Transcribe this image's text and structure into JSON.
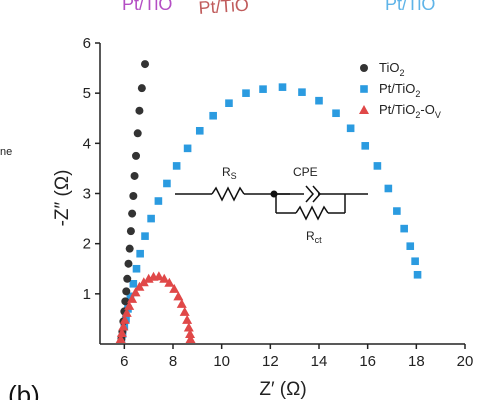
{
  "chart_data": {
    "type": "scatter",
    "xlabel": "Z′ (Ω)",
    "ylabel": "-Z″ (Ω)",
    "xlim": [
      5,
      20
    ],
    "ylim": [
      0,
      6
    ],
    "xticks": [
      6,
      8,
      10,
      12,
      14,
      16,
      18,
      20
    ],
    "yticks": [
      1,
      2,
      3,
      4,
      5,
      6
    ],
    "legend_position": "top-right",
    "series": [
      {
        "name": "TiO2",
        "marker": "circle",
        "color": "#333333",
        "x": [
          5.88,
          5.92,
          5.96,
          6.0,
          6.04,
          6.08,
          6.12,
          6.17,
          6.22,
          6.27,
          6.32,
          6.37,
          6.42,
          6.48,
          6.55,
          6.62,
          6.72,
          6.85
        ],
        "y": [
          0.1,
          0.25,
          0.45,
          0.65,
          0.85,
          1.05,
          1.3,
          1.6,
          1.9,
          2.25,
          2.6,
          2.95,
          3.35,
          3.75,
          4.2,
          4.65,
          5.1,
          5.58
        ]
      },
      {
        "name": "Pt/TiO2",
        "marker": "square",
        "color": "#2b9be0",
        "x": [
          5.88,
          5.93,
          6.0,
          6.07,
          6.15,
          6.25,
          6.37,
          6.5,
          6.65,
          6.85,
          7.1,
          7.4,
          7.75,
          8.15,
          8.6,
          9.1,
          9.65,
          10.3,
          11.0,
          11.7,
          12.5,
          13.3,
          14.0,
          14.7,
          15.3,
          15.9,
          16.4,
          16.85,
          17.2,
          17.5,
          17.75,
          17.95,
          18.05
        ],
        "y": [
          0.1,
          0.2,
          0.35,
          0.5,
          0.7,
          0.95,
          1.2,
          1.5,
          1.8,
          2.15,
          2.5,
          2.85,
          3.2,
          3.55,
          3.9,
          4.25,
          4.55,
          4.8,
          5.0,
          5.08,
          5.12,
          5.02,
          4.85,
          4.6,
          4.3,
          3.95,
          3.55,
          3.1,
          2.65,
          2.3,
          1.95,
          1.65,
          1.38
        ]
      },
      {
        "name": "Pt/TiO2-OV",
        "marker": "triangle",
        "color": "#e04848",
        "x": [
          5.85,
          5.9,
          5.96,
          6.02,
          6.1,
          6.2,
          6.32,
          6.46,
          6.62,
          6.8,
          7.0,
          7.2,
          7.42,
          7.64,
          7.85,
          8.05,
          8.22,
          8.36,
          8.48,
          8.58,
          8.65,
          8.7,
          8.72
        ],
        "y": [
          0.1,
          0.22,
          0.35,
          0.48,
          0.62,
          0.76,
          0.9,
          1.03,
          1.14,
          1.23,
          1.3,
          1.34,
          1.35,
          1.3,
          1.22,
          1.1,
          0.95,
          0.8,
          0.64,
          0.48,
          0.33,
          0.2,
          0.1
        ]
      }
    ],
    "legend": [
      {
        "label": "TiO",
        "sub": "2",
        "suffix": "",
        "marker": "circle",
        "color": "#333333"
      },
      {
        "label": "Pt/TiO",
        "sub": "2",
        "suffix": "",
        "marker": "square",
        "color": "#2b9be0"
      },
      {
        "label": "Pt/TiO",
        "sub": "2",
        "suffix": "-O",
        "sub2": "V",
        "marker": "triangle",
        "color": "#e04848"
      }
    ],
    "circuit": {
      "rs_main": "R",
      "rs_sub": "S",
      "cpe": "CPE",
      "rct_main": "R",
      "rct_sub": "ct"
    },
    "panel_label": "(b)",
    "top_fragments": [
      "Pt/TiO",
      "Pt/TiO",
      "Pt/TiO"
    ],
    "left_fragment": "ne"
  }
}
